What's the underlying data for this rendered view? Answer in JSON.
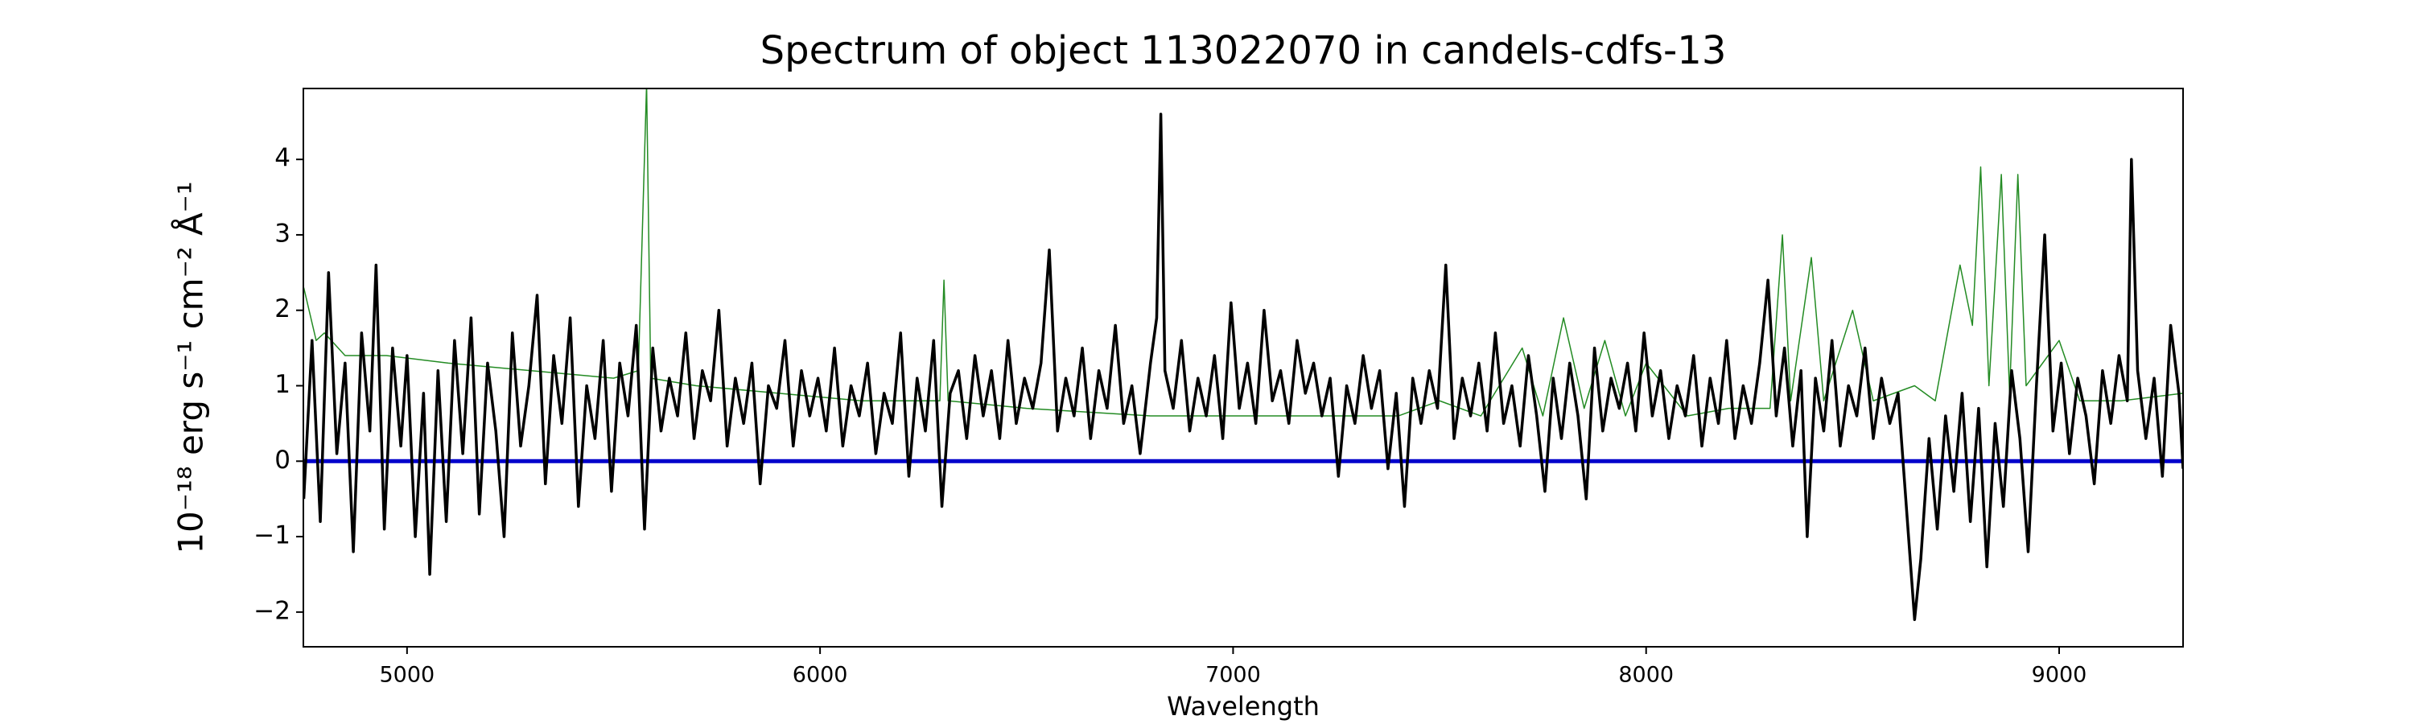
{
  "chart_data": {
    "type": "line",
    "title": "Spectrum of object 113022070 in candels-cdfs-13",
    "xlabel": "Wavelength",
    "ylabel": "10⁻¹⁸ erg s⁻¹ cm⁻² Å⁻¹",
    "xlim": [
      4749,
      9300
    ],
    "ylim": [
      -2.46,
      4.94
    ],
    "xticks": [
      5000,
      6000,
      7000,
      8000,
      9000
    ],
    "yticks": [
      {
        "value": -2,
        "label": "−2"
      },
      {
        "value": -1,
        "label": "−1"
      },
      0,
      1,
      2,
      3,
      4
    ],
    "series": [
      {
        "color": "#238b23",
        "width": 1.5,
        "x": [
          4750,
          4780,
          4800,
          4850,
          4950,
          5100,
          5300,
          5500,
          5560,
          5580,
          5590,
          5700,
          5900,
          6100,
          6290,
          6300,
          6310,
          6500,
          6800,
          7000,
          7200,
          7400,
          7500,
          7600,
          7700,
          7750,
          7800,
          7850,
          7900,
          7950,
          8000,
          8100,
          8200,
          8300,
          8330,
          8350,
          8400,
          8430,
          8500,
          8550,
          8650,
          8700,
          8760,
          8790,
          8810,
          8830,
          8860,
          8880,
          8900,
          8920,
          9000,
          9050,
          9150,
          9300
        ],
        "values": [
          2.3,
          1.6,
          1.7,
          1.4,
          1.4,
          1.3,
          1.2,
          1.1,
          1.2,
          5.0,
          1.1,
          1.0,
          0.9,
          0.8,
          0.8,
          2.4,
          0.8,
          0.7,
          0.6,
          0.6,
          0.6,
          0.6,
          0.8,
          0.6,
          1.5,
          0.6,
          1.9,
          0.7,
          1.6,
          0.6,
          1.3,
          0.6,
          0.7,
          0.7,
          3.0,
          0.8,
          2.7,
          0.8,
          2.0,
          0.8,
          1.0,
          0.8,
          2.6,
          1.8,
          3.9,
          1.0,
          3.8,
          0.9,
          3.8,
          1.0,
          1.6,
          0.8,
          0.8,
          0.9
        ]
      },
      {
        "color": "#0000cc",
        "width": 5,
        "x": [
          4750,
          9300
        ],
        "values": [
          0,
          0
        ]
      },
      {
        "color": "#000000",
        "width": 3.5,
        "x": [
          4750,
          4770,
          4790,
          4810,
          4830,
          4850,
          4870,
          4890,
          4910,
          4925,
          4945,
          4965,
          4985,
          5000,
          5020,
          5040,
          5055,
          5075,
          5095,
          5115,
          5135,
          5155,
          5175,
          5195,
          5215,
          5235,
          5255,
          5275,
          5295,
          5315,
          5335,
          5355,
          5375,
          5395,
          5415,
          5435,
          5455,
          5475,
          5495,
          5515,
          5535,
          5555,
          5575,
          5595,
          5615,
          5635,
          5655,
          5675,
          5695,
          5715,
          5735,
          5755,
          5775,
          5795,
          5815,
          5835,
          5855,
          5875,
          5895,
          5915,
          5935,
          5955,
          5975,
          5995,
          6015,
          6035,
          6055,
          6075,
          6095,
          6115,
          6135,
          6155,
          6175,
          6195,
          6215,
          6235,
          6255,
          6275,
          6295,
          6315,
          6335,
          6355,
          6375,
          6395,
          6415,
          6435,
          6455,
          6475,
          6495,
          6515,
          6535,
          6555,
          6575,
          6595,
          6615,
          6635,
          6655,
          6675,
          6695,
          6715,
          6735,
          6755,
          6775,
          6800,
          6815,
          6825,
          6835,
          6855,
          6875,
          6895,
          6915,
          6935,
          6955,
          6975,
          6995,
          7015,
          7035,
          7055,
          7075,
          7095,
          7115,
          7135,
          7155,
          7175,
          7195,
          7215,
          7235,
          7255,
          7275,
          7295,
          7315,
          7335,
          7355,
          7375,
          7395,
          7415,
          7435,
          7455,
          7475,
          7495,
          7515,
          7535,
          7555,
          7575,
          7595,
          7615,
          7635,
          7655,
          7675,
          7695,
          7715,
          7735,
          7755,
          7775,
          7795,
          7815,
          7835,
          7855,
          7875,
          7895,
          7915,
          7935,
          7955,
          7975,
          7995,
          8015,
          8035,
          8055,
          8075,
          8095,
          8115,
          8135,
          8155,
          8175,
          8195,
          8215,
          8235,
          8255,
          8275,
          8295,
          8315,
          8335,
          8355,
          8375,
          8390,
          8410,
          8430,
          8450,
          8470,
          8490,
          8510,
          8530,
          8550,
          8570,
          8590,
          8610,
          8630,
          8650,
          8665,
          8685,
          8705,
          8725,
          8745,
          8765,
          8785,
          8805,
          8825,
          8845,
          8865,
          8885,
          8905,
          8925,
          8945,
          8965,
          8985,
          9005,
          9025,
          9045,
          9065,
          9085,
          9105,
          9125,
          9145,
          9165,
          9175,
          9190,
          9210,
          9230,
          9250,
          9270,
          9290,
          9300
        ],
        "values": [
          -0.5,
          1.6,
          -0.8,
          2.5,
          0.1,
          1.3,
          -1.2,
          1.7,
          0.4,
          2.6,
          -0.9,
          1.5,
          0.2,
          1.4,
          -1.0,
          0.9,
          -1.5,
          1.2,
          -0.8,
          1.6,
          0.1,
          1.9,
          -0.7,
          1.3,
          0.4,
          -1.0,
          1.7,
          0.2,
          1.0,
          2.2,
          -0.3,
          1.4,
          0.5,
          1.9,
          -0.6,
          1.0,
          0.3,
          1.6,
          -0.4,
          1.3,
          0.6,
          1.8,
          -0.9,
          1.5,
          0.4,
          1.1,
          0.6,
          1.7,
          0.3,
          1.2,
          0.8,
          2.0,
          0.2,
          1.1,
          0.5,
          1.3,
          -0.3,
          1.0,
          0.7,
          1.6,
          0.2,
          1.2,
          0.6,
          1.1,
          0.4,
          1.5,
          0.2,
          1.0,
          0.6,
          1.3,
          0.1,
          0.9,
          0.5,
          1.7,
          -0.2,
          1.1,
          0.4,
          1.6,
          -0.6,
          0.9,
          1.2,
          0.3,
          1.4,
          0.6,
          1.2,
          0.3,
          1.6,
          0.5,
          1.1,
          0.7,
          1.3,
          2.8,
          0.4,
          1.1,
          0.6,
          1.5,
          0.3,
          1.2,
          0.7,
          1.8,
          0.5,
          1.0,
          0.1,
          1.3,
          1.9,
          4.6,
          1.2,
          0.7,
          1.6,
          0.4,
          1.1,
          0.6,
          1.4,
          0.3,
          2.1,
          0.7,
          1.3,
          0.5,
          2.0,
          0.8,
          1.2,
          0.5,
          1.6,
          0.9,
          1.3,
          0.6,
          1.1,
          -0.2,
          1.0,
          0.5,
          1.4,
          0.7,
          1.2,
          -0.1,
          0.9,
          -0.6,
          1.1,
          0.5,
          1.2,
          0.7,
          2.6,
          0.3,
          1.1,
          0.6,
          1.3,
          0.4,
          1.7,
          0.5,
          1.0,
          0.2,
          1.4,
          0.6,
          -0.4,
          1.1,
          0.3,
          1.3,
          0.6,
          -0.5,
          1.5,
          0.4,
          1.1,
          0.7,
          1.3,
          0.4,
          1.7,
          0.6,
          1.2,
          0.3,
          1.0,
          0.6,
          1.4,
          0.2,
          1.1,
          0.5,
          1.6,
          0.3,
          1.0,
          0.5,
          1.3,
          2.4,
          0.6,
          1.5,
          0.2,
          1.2,
          -1.0,
          1.1,
          0.4,
          1.6,
          0.2,
          1.0,
          0.6,
          1.5,
          0.3,
          1.1,
          0.5,
          0.9,
          -0.6,
          -2.1,
          -1.3,
          0.3,
          -0.9,
          0.6,
          -0.4,
          0.9,
          -0.8,
          0.7,
          -1.4,
          0.5,
          -0.6,
          1.2,
          0.3,
          -1.2,
          1.0,
          3.0,
          0.4,
          1.3,
          0.1,
          1.1,
          0.6,
          -0.3,
          1.2,
          0.5,
          1.4,
          0.8,
          4.0,
          1.2,
          0.3,
          1.1,
          -0.2,
          1.8,
          0.9,
          -0.1
        ]
      }
    ]
  }
}
